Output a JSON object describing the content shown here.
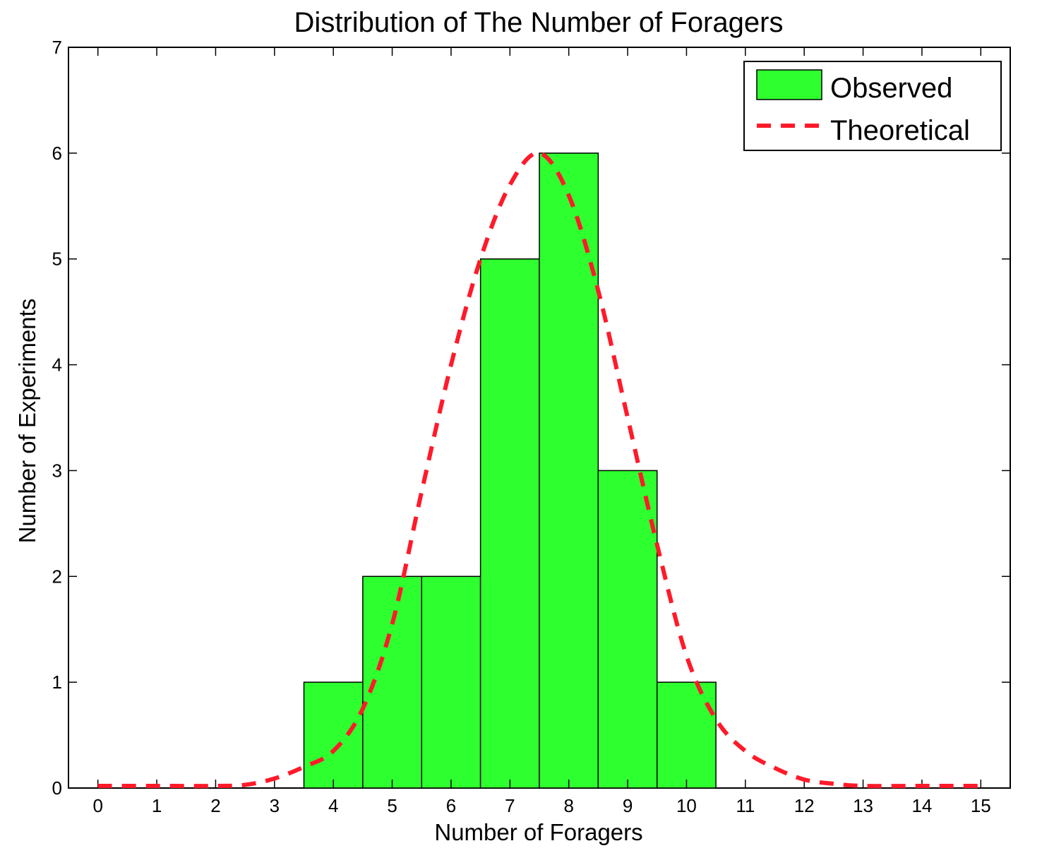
{
  "chart_data": {
    "type": "bar",
    "title": "Distribution of The Number of Foragers",
    "xlabel": "Number of Foragers",
    "ylabel": "Number of Experiments",
    "xlim": [
      -0.5,
      15.5
    ],
    "ylim": [
      0,
      7
    ],
    "xticks": [
      "0",
      "1",
      "2",
      "3",
      "4",
      "5",
      "6",
      "7",
      "8",
      "9",
      "10",
      "11",
      "12",
      "13",
      "14",
      "15"
    ],
    "yticks": [
      "0",
      "1",
      "2",
      "3",
      "4",
      "5",
      "6",
      "7"
    ],
    "grid": false,
    "legend_position": "top-right",
    "series": [
      {
        "name": "Observed",
        "type": "bar",
        "color": "#2eff2e",
        "x": [
          4,
          5,
          6,
          7,
          8,
          9,
          10
        ],
        "values": [
          1,
          2,
          2,
          5,
          6,
          3,
          1
        ]
      },
      {
        "name": "Theoretical",
        "type": "line",
        "style": "dashed",
        "color": "#ff1a2a",
        "x": [
          0,
          1,
          2,
          2.5,
          3,
          3.5,
          4,
          4.5,
          5,
          5.5,
          6,
          6.5,
          7,
          7.5,
          8,
          8.5,
          9,
          9.5,
          10,
          10.5,
          11,
          11.5,
          12,
          12.5,
          13,
          14,
          15
        ],
        "values": [
          0.02,
          0.02,
          0.02,
          0.03,
          0.09,
          0.2,
          0.35,
          0.75,
          1.55,
          2.8,
          4.0,
          5.0,
          5.7,
          6.0,
          5.6,
          4.7,
          3.5,
          2.3,
          1.25,
          0.65,
          0.35,
          0.19,
          0.08,
          0.04,
          0.02,
          0.02,
          0.02
        ]
      }
    ]
  }
}
